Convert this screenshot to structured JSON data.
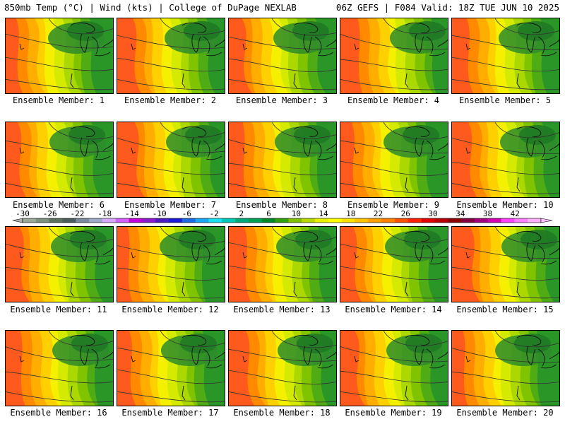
{
  "header": {
    "left": "850mb Temp (°C) | Wind (kts) | College of DuPage NEXLAB",
    "right": "06Z GEFS | F084 Valid: 18Z TUE JUN 10 2025"
  },
  "panels": [
    {
      "label": "Ensemble Member: 1"
    },
    {
      "label": "Ensemble Member: 2"
    },
    {
      "label": "Ensemble Member: 3"
    },
    {
      "label": "Ensemble Member: 4"
    },
    {
      "label": "Ensemble Member: 5"
    },
    {
      "label": "Ensemble Member: 6"
    },
    {
      "label": "Ensemble Member: 7"
    },
    {
      "label": "Ensemble Member: 8"
    },
    {
      "label": "Ensemble Member: 9"
    },
    {
      "label": "Ensemble Member: 10"
    },
    {
      "label": "Ensemble Member: 11"
    },
    {
      "label": "Ensemble Member: 12"
    },
    {
      "label": "Ensemble Member: 13"
    },
    {
      "label": "Ensemble Member: 14"
    },
    {
      "label": "Ensemble Member: 15"
    },
    {
      "label": "Ensemble Member: 16"
    },
    {
      "label": "Ensemble Member: 17"
    },
    {
      "label": "Ensemble Member: 18"
    },
    {
      "label": "Ensemble Member: 19"
    },
    {
      "label": "Ensemble Member: 20"
    }
  ],
  "colorbar": {
    "tick_labels": [
      "-30",
      "-26",
      "-22",
      "-18",
      "-14",
      "-10",
      "-6",
      "-2",
      "2",
      "6",
      "10",
      "14",
      "18",
      "22",
      "26",
      "30",
      "34",
      "38",
      "42"
    ],
    "colors": [
      "#9aa89a",
      "#7f8f7f",
      "#5e6e5e",
      "#4a5a5a",
      "#7a8a9a",
      "#a0aac8",
      "#d6a8ff",
      "#d060ff",
      "#c000d8",
      "#8a1cc8",
      "#4a1cc0",
      "#1c1cd8",
      "#1c6ae0",
      "#1ca8f0",
      "#18e0f0",
      "#00c8b4",
      "#00a878",
      "#00a050",
      "#008828",
      "#30a010",
      "#80c000",
      "#b8d800",
      "#e8f000",
      "#ffff00",
      "#ffe000",
      "#ffc000",
      "#ffa000",
      "#ff8000",
      "#ff5000",
      "#ff2000",
      "#e00000",
      "#b80000",
      "#8a0000",
      "#800040",
      "#a00080",
      "#d000b0",
      "#ff40ff",
      "#ff80ff",
      "#ffb0ff"
    ]
  }
}
